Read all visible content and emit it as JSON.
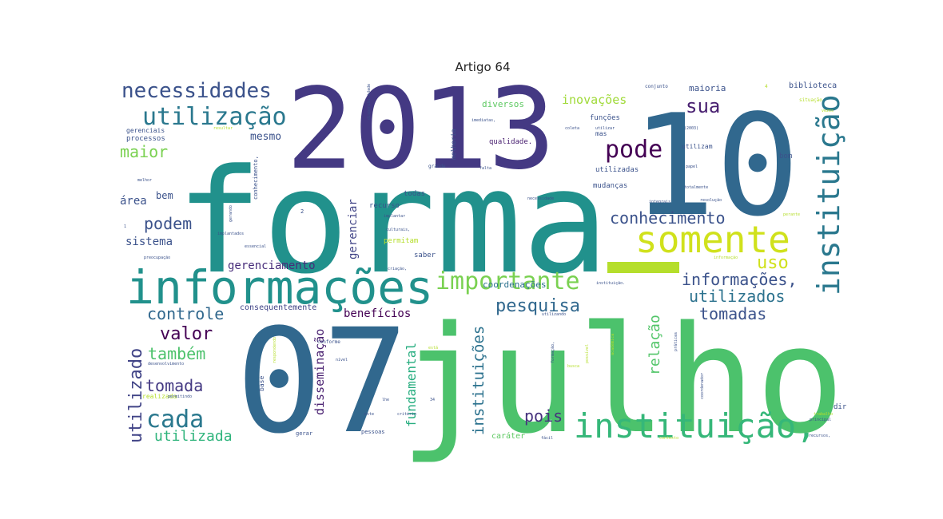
{
  "chart_data": {
    "type": "wordcloud",
    "title": "Artigo 64",
    "words": [
      {
        "text": "forma",
        "color": "#21918c"
      },
      {
        "text": "julho",
        "color": "#4cc26c"
      },
      {
        "text": "07",
        "color": "#31688e"
      },
      {
        "text": "2013",
        "color": "#443983"
      },
      {
        "text": "10",
        "color": "#31688e"
      },
      {
        "text": "informações",
        "color": "#21918c"
      },
      {
        "text": "somente",
        "color": "#d0e11c"
      },
      {
        "text": "instituição",
        "color": "#2a788e"
      },
      {
        "text": "instituição,",
        "color": "#35b779"
      },
      {
        "text": "importante",
        "color": "#7ad151"
      },
      {
        "text": "utilização",
        "color": "#2a788e"
      },
      {
        "text": "necessidades",
        "color": "#3b528b"
      },
      {
        "text": "pode",
        "color": "#440154"
      },
      {
        "text": "sua",
        "color": "#481f70"
      },
      {
        "text": "maior",
        "color": "#7ad151"
      },
      {
        "text": "conhecimento",
        "color": "#3b528b"
      },
      {
        "text": "uso",
        "color": "#d0e11c"
      },
      {
        "text": "informações,",
        "color": "#3b528b"
      },
      {
        "text": "utilizados",
        "color": "#2c728e"
      },
      {
        "text": "tomadas",
        "color": "#3b528b"
      },
      {
        "text": "podem",
        "color": "#3b528b"
      },
      {
        "text": "controle",
        "color": "#31688e"
      },
      {
        "text": "pesquisa",
        "color": "#31688e"
      },
      {
        "text": "valor",
        "color": "#440154"
      },
      {
        "text": "também",
        "color": "#4cc26c"
      },
      {
        "text": "tomada",
        "color": "#443983"
      },
      {
        "text": "cada",
        "color": "#2a788e"
      },
      {
        "text": "pois",
        "color": "#46327e"
      },
      {
        "text": "utilizado",
        "color": "#414487"
      },
      {
        "text": "utilizada",
        "color": "#2fb47c"
      },
      {
        "text": "instituições",
        "color": "#2c728e"
      },
      {
        "text": "relação",
        "color": "#52c569"
      },
      {
        "text": "fundamental",
        "color": "#28ae80"
      },
      {
        "text": "disseminação",
        "color": "#481f70"
      },
      {
        "text": "gerenciar",
        "color": "#414487"
      },
      {
        "text": "gerenciamento",
        "color": "#472c7a"
      },
      {
        "text": "inovações",
        "color": "#a0da39"
      },
      {
        "text": "benefícios",
        "color": "#440154"
      },
      {
        "text": "sistema",
        "color": "#3b528b"
      },
      {
        "text": "área",
        "color": "#3b528b"
      },
      {
        "text": "bem",
        "color": "#3b528b"
      },
      {
        "text": "mesmo",
        "color": "#3b528b"
      },
      {
        "text": "coordenações",
        "color": "#2c728e"
      },
      {
        "text": "diversos",
        "color": "#5ec962"
      },
      {
        "text": "maioria",
        "color": "#3b528b"
      },
      {
        "text": "biblioteca",
        "color": "#3b528b"
      },
      {
        "text": "caráter",
        "color": "#5ec962"
      },
      {
        "text": "consequentemente",
        "color": "#414487"
      },
      {
        "text": "qualidade.",
        "color": "#481f70"
      },
      {
        "text": "utilizadas",
        "color": "#3b528b"
      },
      {
        "text": "mudanças",
        "color": "#3b528b"
      },
      {
        "text": "funções",
        "color": "#3b528b"
      },
      {
        "text": "todas",
        "color": "#3b528b"
      },
      {
        "text": "recurso",
        "color": "#3b528b"
      },
      {
        "text": "permitam",
        "color": "#b5de2b"
      },
      {
        "text": "saber",
        "color": "#3b528b"
      },
      {
        "text": "processos",
        "color": "#3b528b"
      },
      {
        "text": "gerenciais",
        "color": "#3b528b"
      },
      {
        "text": "base",
        "color": "#3b528b"
      },
      {
        "text": "conforme",
        "color": "#3b528b"
      },
      {
        "text": "pessoas",
        "color": "#3b528b"
      },
      {
        "text": "gerar",
        "color": "#3b528b"
      },
      {
        "text": "dir",
        "color": "#3b528b"
      },
      {
        "text": "bom",
        "color": "#3b528b"
      },
      {
        "text": "utilizam",
        "color": "#3b528b"
      },
      {
        "text": "mas",
        "color": "#3b528b"
      },
      {
        "text": "melhoria",
        "color": "#3b528b"
      },
      {
        "text": "grande",
        "color": "#3b528b"
      },
      {
        "text": "conjunto",
        "color": "#3b528b"
      },
      {
        "text": "situação",
        "color": "#b5de2b"
      },
      {
        "text": "papel",
        "color": "#3b528b"
      },
      {
        "text": "resolução",
        "color": "#3b528b"
      },
      {
        "text": "necessidade",
        "color": "#3b528b"
      },
      {
        "text": "implantar",
        "color": "#3b528b"
      },
      {
        "text": "culturais,",
        "color": "#3b528b"
      },
      {
        "text": "criação,",
        "color": "#3b528b"
      },
      {
        "text": "utilizando",
        "color": "#3b528b"
      },
      {
        "text": "nível",
        "color": "#3b528b"
      },
      {
        "text": "utilizar",
        "color": "#3b528b"
      },
      {
        "text": "coleta",
        "color": "#3b528b"
      },
      {
        "text": "imediatas,",
        "color": "#3b528b"
      },
      {
        "text": "falta",
        "color": "#3b528b"
      },
      {
        "text": "realizada",
        "color": "#b5de2b"
      },
      {
        "text": "permitindo",
        "color": "#3b528b"
      },
      {
        "text": "critério",
        "color": "#3b528b"
      },
      {
        "text": "fácil",
        "color": "#3b528b"
      },
      {
        "text": "principal",
        "color": "#3b528b"
      },
      {
        "text": "recursos,",
        "color": "#3b528b"
      },
      {
        "text": "trabalho",
        "color": "#b5de2b"
      },
      {
        "text": "contexto",
        "color": "#b5de2b"
      },
      {
        "text": "coordenador",
        "color": "#3b528b"
      },
      {
        "text": "preocupação",
        "color": "#3b528b"
      },
      {
        "text": "informação",
        "color": "#b5de2b"
      },
      {
        "text": "instituição.",
        "color": "#3b528b"
      },
      {
        "text": "gerando",
        "color": "#3b528b"
      },
      {
        "text": "integrais",
        "color": "#3b528b"
      },
      {
        "text": "totalmente",
        "color": "#3b528b"
      },
      {
        "text": "disponibilidade",
        "color": "#3b528b"
      },
      {
        "text": "resultar",
        "color": "#b5de2b"
      },
      {
        "text": "melhor",
        "color": "#3b528b"
      },
      {
        "text": "implantados",
        "color": "#3b528b"
      },
      {
        "text": "essencial",
        "color": "#3b528b"
      },
      {
        "text": "conhecimento,",
        "color": "#3b528b"
      },
      {
        "text": "desenvolvimento",
        "color": "#3b528b"
      },
      {
        "text": "respondendo",
        "color": "#b5de2b"
      },
      {
        "text": "acadêmica",
        "color": "#b5de2b"
      },
      {
        "text": "formação,",
        "color": "#3b528b"
      },
      {
        "text": "possível",
        "color": "#b5de2b"
      },
      {
        "text": "práticas",
        "color": "#3b528b"
      },
      {
        "text": "busca",
        "color": "#b5de2b"
      },
      {
        "text": "está",
        "color": "#b5de2b"
      },
      {
        "text": "este",
        "color": "#3b528b"
      },
      {
        "text": "lhe",
        "color": "#3b528b"
      },
      {
        "text": "34",
        "color": "#3b528b"
      },
      {
        "text": "(2003)",
        "color": "#3b528b"
      },
      {
        "text": "2",
        "color": "#3b528b"
      },
      {
        "text": "4",
        "color": "#b5de2b"
      },
      {
        "text": "1",
        "color": "#3b528b"
      },
      {
        "text": "perante",
        "color": "#b5de2b"
      },
      {
        "text": "vezes",
        "color": "#b5de2b"
      }
    ]
  }
}
